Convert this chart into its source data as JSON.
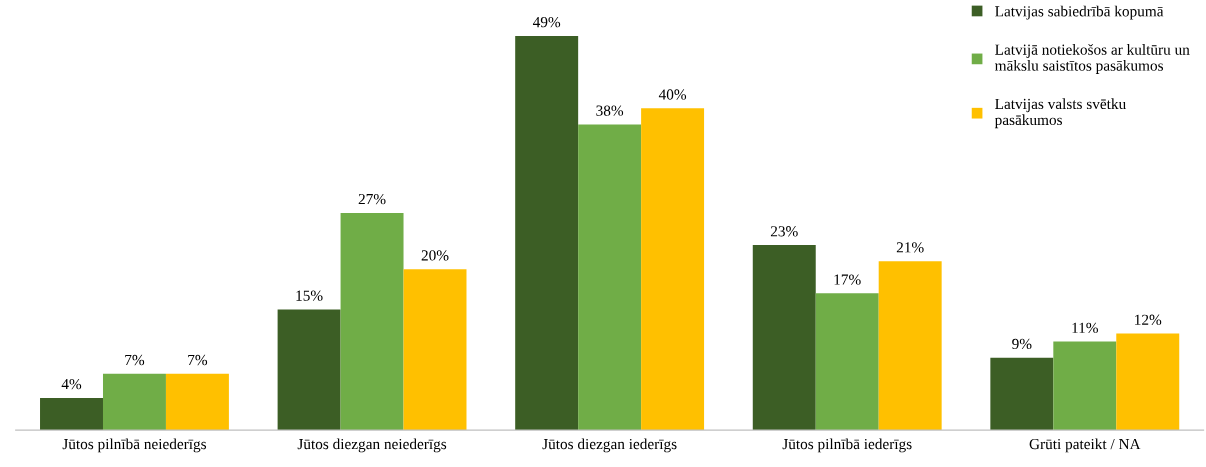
{
  "chart_data": {
    "type": "bar",
    "categories": [
      "Jūtos pilnībā neiederīgs",
      "Jūtos diezgan neiederīgs",
      "Jūtos diezgan iederīgs",
      "Jūtos pilnībā iederīgs",
      "Grūti pateikt / NA"
    ],
    "relative": false,
    "series": [
      {
        "name": "Latvijas sabiedrībā kopumā",
        "color": "#3c5e25",
        "values": [
          4,
          15,
          49,
          23,
          9
        ],
        "value_labels": [
          "4%",
          "15%",
          "49%",
          "23%",
          "9%"
        ]
      },
      {
        "name": "Latvijā notiekošos ar kultūru un\nmākslu saistītos pasākumos",
        "color": "#70ad47",
        "values": [
          7,
          27,
          38,
          17,
          11
        ],
        "value_labels": [
          "7%",
          "27%",
          "38%",
          "17%",
          "11%"
        ]
      },
      {
        "name": "Latvijas valsts svētku\npasākumos",
        "color": "#ffc000",
        "values": [
          7,
          20,
          40,
          21,
          12
        ],
        "value_labels": [
          "7%",
          "20%",
          "40%",
          "21%",
          "12%"
        ]
      }
    ],
    "legend": "top right"
  }
}
